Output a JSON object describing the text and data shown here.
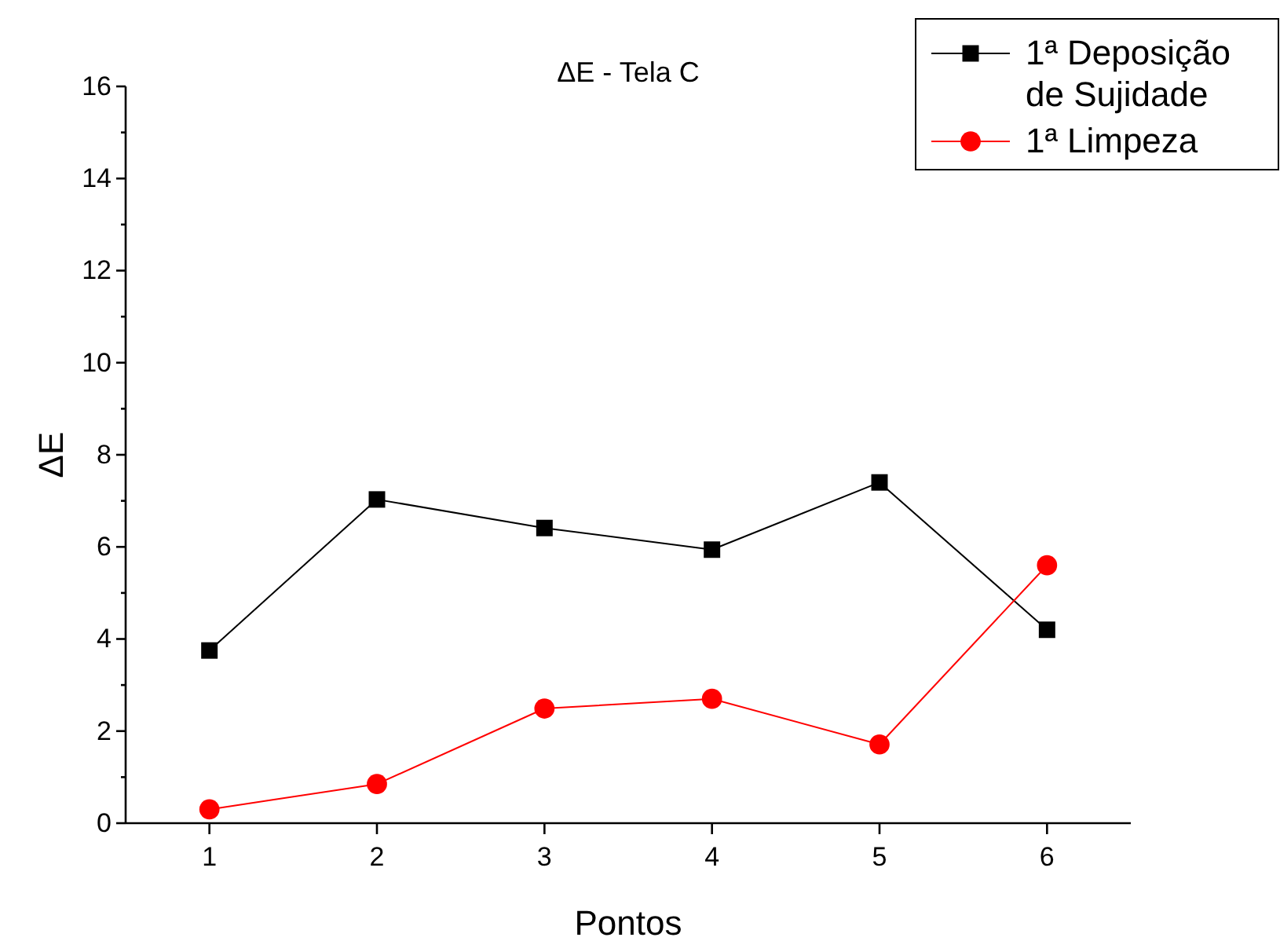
{
  "chart_data": {
    "type": "line",
    "title": "ΔE - Tela C",
    "xlabel": "Pontos",
    "ylabel": "ΔE",
    "x": [
      1,
      2,
      3,
      4,
      5,
      6
    ],
    "series": [
      {
        "name": "1ª Deposição de Sujidade",
        "color": "#000000",
        "marker": "square",
        "values": [
          3.75,
          7.03,
          6.41,
          5.94,
          7.4,
          4.2
        ]
      },
      {
        "name": "1ª Limpeza",
        "color": "#ff0000",
        "marker": "circle",
        "values": [
          0.3,
          0.85,
          2.49,
          2.7,
          1.71,
          5.6
        ]
      }
    ],
    "xlim": [
      0.5,
      6.5
    ],
    "xticks": [
      1,
      2,
      3,
      4,
      5,
      6
    ],
    "ylim": [
      0,
      16
    ],
    "yticks": [
      0,
      {
        "value": 1,
        "label": null
      },
      2,
      {
        "value": 3,
        "label": null
      },
      4,
      {
        "value": 5,
        "label": null
      },
      6,
      {
        "value": 7,
        "label": null
      },
      8,
      {
        "value": 9,
        "label": null
      },
      10,
      {
        "value": 11,
        "label": null
      },
      12,
      {
        "value": 13,
        "label": null
      },
      14,
      {
        "value": 15,
        "label": null
      },
      16
    ],
    "grid": false,
    "legend": "top right",
    "line_style": "solid"
  }
}
